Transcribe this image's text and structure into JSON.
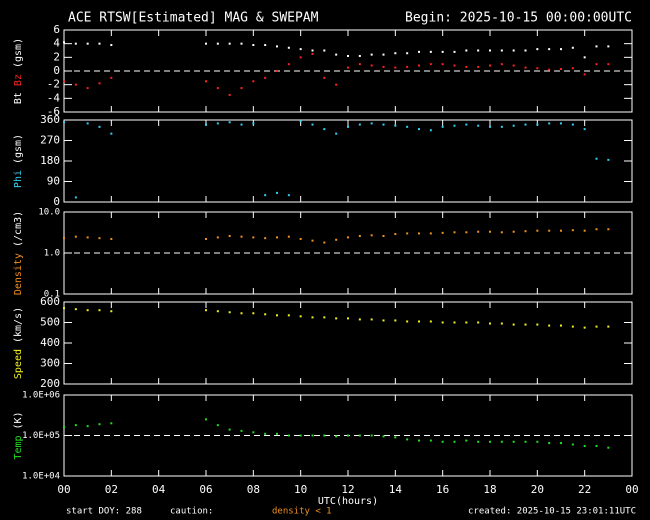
{
  "header": {
    "title": "ACE RTSW[Estimated] MAG & SWEPAM",
    "begin": "Begin: 2025-10-15 00:00:00UTC"
  },
  "footer": {
    "start": "start DOY: 288",
    "caution": "caution:",
    "density_note": "density < 1",
    "created": "created: 2025-10-15 23:01:11UTC"
  },
  "chart_data": [
    {
      "type": "scatter",
      "ylabel": "(gsm)",
      "ylim": [
        -6,
        6
      ],
      "yticks": [
        6,
        4,
        2,
        0,
        -2,
        -4,
        -6
      ],
      "refline": 0,
      "xlim": [
        0,
        24
      ],
      "x": [
        0,
        0.5,
        1,
        1.5,
        2,
        6,
        6.5,
        7,
        7.5,
        8,
        8.5,
        9,
        9.5,
        10,
        10.5,
        11,
        11.5,
        12,
        12.5,
        13,
        13.5,
        14,
        14.5,
        15,
        15.5,
        16,
        16.5,
        17,
        17.5,
        18,
        18.5,
        19,
        19.5,
        20,
        20.5,
        21,
        21.5,
        22,
        22.5,
        23
      ],
      "series": [
        {
          "name": "Bt",
          "color": "#ffffff",
          "values": [
            4.2,
            4,
            4,
            4,
            3.8,
            4,
            4,
            4,
            4,
            3.8,
            3.8,
            3.6,
            3.4,
            3.2,
            3.0,
            3.0,
            2.4,
            2.2,
            2.2,
            2.4,
            2.4,
            2.6,
            2.6,
            2.8,
            2.8,
            2.8,
            2.8,
            3.0,
            3.0,
            3.0,
            3.0,
            3.0,
            3.0,
            3.2,
            3.2,
            3.2,
            3.4,
            2.0,
            3.6,
            3.6
          ]
        },
        {
          "name": "Bz",
          "color": "#ff2020",
          "values": [
            -1.5,
            -2,
            -2.5,
            -1.8,
            -1,
            -1.5,
            -2.5,
            -3.5,
            -2.5,
            -1.5,
            -1,
            0,
            1,
            2,
            2.5,
            -1,
            -2,
            0.5,
            1,
            0.8,
            0.6,
            0.5,
            0.6,
            0.8,
            1.0,
            1.0,
            0.8,
            0.6,
            0.6,
            0.8,
            1.0,
            0.8,
            0.5,
            0.4,
            0.2,
            0.3,
            0.4,
            -0.5,
            1.0,
            1.0
          ]
        }
      ]
    },
    {
      "type": "scatter",
      "ylabel": "(gsm)",
      "ylim": [
        0,
        360
      ],
      "yticks": [
        360,
        270,
        180,
        90,
        0
      ],
      "xlim": [
        0,
        24
      ],
      "x": [
        0,
        0.5,
        1,
        1.5,
        2,
        6,
        6.5,
        7,
        7.5,
        8,
        8.5,
        9,
        9.5,
        10,
        10.5,
        11,
        11.5,
        12,
        12.5,
        13,
        13.5,
        14,
        14.5,
        15,
        15.5,
        16,
        16.5,
        17,
        17.5,
        18,
        18.5,
        19,
        19.5,
        20,
        20.5,
        21,
        21.5,
        22,
        22.5,
        23
      ],
      "series": [
        {
          "name": "Phi",
          "color": "#30d0f0",
          "values": [
            350,
            20,
            345,
            330,
            300,
            340,
            345,
            350,
            340,
            345,
            30,
            40,
            30,
            355,
            340,
            320,
            300,
            330,
            340,
            345,
            340,
            335,
            330,
            320,
            315,
            330,
            335,
            340,
            335,
            330,
            330,
            335,
            340,
            340,
            345,
            345,
            340,
            320,
            190,
            185
          ]
        }
      ]
    },
    {
      "type": "scatter",
      "log": true,
      "ylabel": "(/cm3)",
      "ylim": [
        0.1,
        10
      ],
      "yticks": [
        {
          "value": 10,
          "label": "10.0"
        },
        {
          "value": 1,
          "label": "1.0"
        },
        0.1
      ],
      "refline": 1,
      "xlim": [
        0,
        24
      ],
      "x": [
        0,
        0.5,
        1,
        1.5,
        2,
        6,
        6.5,
        7,
        7.5,
        8,
        8.5,
        9,
        9.5,
        10,
        10.5,
        11,
        11.5,
        12,
        12.5,
        13,
        13.5,
        14,
        14.5,
        15,
        15.5,
        16,
        16.5,
        17,
        17.5,
        18,
        18.5,
        19,
        19.5,
        20,
        20.5,
        21,
        21.5,
        22,
        22.5,
        23
      ],
      "series": [
        {
          "name": "Density",
          "color": "#f09020",
          "values": [
            2.3,
            2.5,
            2.4,
            2.3,
            2.2,
            2.2,
            2.4,
            2.6,
            2.5,
            2.4,
            2.3,
            2.4,
            2.5,
            2.2,
            2.0,
            1.8,
            2.1,
            2.4,
            2.6,
            2.7,
            2.6,
            2.9,
            3.0,
            3.0,
            3.0,
            3.1,
            3.2,
            3.2,
            3.3,
            3.3,
            3.2,
            3.3,
            3.4,
            3.5,
            3.5,
            3.5,
            3.6,
            3.5,
            3.8,
            3.8
          ]
        }
      ]
    },
    {
      "type": "scatter",
      "ylabel": "(km/s)",
      "ylim": [
        200,
        600
      ],
      "yticks": [
        600,
        500,
        400,
        300,
        200
      ],
      "xlim": [
        0,
        24
      ],
      "x": [
        0,
        0.5,
        1,
        1.5,
        2,
        6,
        6.5,
        7,
        7.5,
        8,
        8.5,
        9,
        9.5,
        10,
        10.5,
        11,
        11.5,
        12,
        12.5,
        13,
        13.5,
        14,
        14.5,
        15,
        15.5,
        16,
        16.5,
        17,
        17.5,
        18,
        18.5,
        19,
        19.5,
        20,
        20.5,
        21,
        21.5,
        22,
        22.5,
        23
      ],
      "series": [
        {
          "name": "Speed",
          "color": "#f0f020",
          "values": [
            570,
            565,
            560,
            560,
            555,
            560,
            555,
            550,
            545,
            545,
            540,
            535,
            535,
            530,
            525,
            525,
            520,
            520,
            515,
            515,
            510,
            510,
            505,
            505,
            505,
            500,
            500,
            500,
            500,
            495,
            495,
            490,
            490,
            490,
            485,
            485,
            480,
            475,
            480,
            480
          ]
        }
      ]
    },
    {
      "type": "scatter",
      "log": true,
      "ylabel": "(K)",
      "ylim": [
        10000,
        1000000
      ],
      "yticks": [
        {
          "value": 1000000,
          "label": "1.0E+06"
        },
        {
          "value": 100000,
          "label": "1.0E+05"
        },
        {
          "value": 10000,
          "label": "1.0E+04"
        }
      ],
      "refline": 100000,
      "xlim": [
        0,
        24
      ],
      "xlabel": "UTC(hours)",
      "xticks": [
        {
          "value": 0,
          "label": "00"
        },
        {
          "value": 2,
          "label": "02"
        },
        {
          "value": 4,
          "label": "04"
        },
        {
          "value": 6,
          "label": "06"
        },
        {
          "value": 8,
          "label": "08"
        },
        10,
        12,
        14,
        16,
        18,
        20,
        22,
        {
          "value": 24,
          "label": "00"
        }
      ],
      "x": [
        0,
        0.5,
        1,
        1.5,
        2,
        6,
        6.5,
        7,
        7.5,
        8,
        8.5,
        9,
        9.5,
        10,
        10.5,
        11,
        11.5,
        12,
        12.5,
        13,
        13.5,
        14,
        14.5,
        15,
        15.5,
        16,
        16.5,
        17,
        17.5,
        18,
        18.5,
        19,
        19.5,
        20,
        20.5,
        21,
        21.5,
        22,
        22.5,
        23
      ],
      "series": [
        {
          "name": "Temp",
          "color": "#20e020",
          "values": [
            160000,
            180000,
            170000,
            190000,
            200000,
            250000,
            180000,
            140000,
            130000,
            120000,
            110000,
            110000,
            100000,
            100000,
            100000,
            100000,
            95000,
            100000,
            100000,
            100000,
            95000,
            90000,
            80000,
            75000,
            75000,
            70000,
            70000,
            75000,
            70000,
            70000,
            70000,
            70000,
            70000,
            70000,
            65000,
            65000,
            60000,
            55000,
            55000,
            50000
          ]
        }
      ]
    }
  ]
}
